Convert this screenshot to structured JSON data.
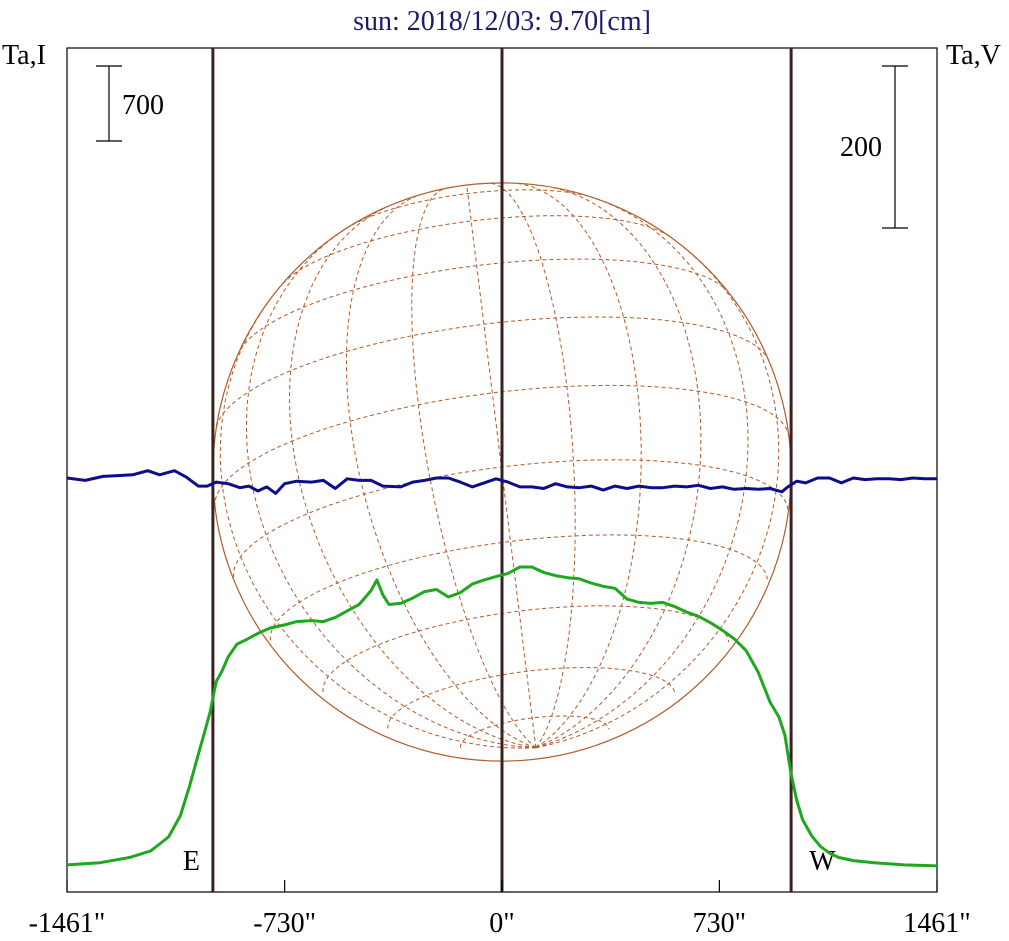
{
  "chart_data": {
    "type": "line",
    "title": "sun: 2018/12/03: 9.70[cm]",
    "title_color": "#1a1a6e",
    "y_label_left": "Ta,I",
    "y_label_right": "Ta,V",
    "x_ticks": [
      {
        "value": -1461,
        "label": "-1461\""
      },
      {
        "value": -730,
        "label": "-730\""
      },
      {
        "value": 0,
        "label": "0\""
      },
      {
        "value": 730,
        "label": "730\""
      },
      {
        "value": 1461,
        "label": "1461\""
      }
    ],
    "xlim": [
      -1461,
      1461
    ],
    "scale_bars": [
      {
        "side": "left",
        "label": "700",
        "value": 700
      },
      {
        "side": "right",
        "label": "200",
        "value": 200
      }
    ],
    "limb_markers": [
      {
        "label": "E",
        "value": -971
      },
      {
        "label": "W",
        "value": 971
      }
    ],
    "center_marker": 0,
    "solar_radius_arcsec": 971,
    "colors": {
      "stokes_i": "#1fa81f",
      "stokes_v": "#0d0d8c",
      "limb_lines": "#3b2020",
      "disk": "#b35a28"
    },
    "series": [
      {
        "name": "Ta,I",
        "axis": "left",
        "x": [
          -1461,
          -1350,
          -1250,
          -1180,
          -1120,
          -1080,
          -1050,
          -1020,
          -1000,
          -980,
          -960,
          -940,
          -920,
          -890,
          -860,
          -820,
          -780,
          -730,
          -690,
          -640,
          -600,
          -560,
          -520,
          -480,
          -440,
          -420,
          -400,
          -380,
          -340,
          -300,
          -260,
          -220,
          -180,
          -140,
          -100,
          -60,
          -20,
          20,
          60,
          100,
          140,
          180,
          220,
          260,
          300,
          340,
          380,
          420,
          460,
          500,
          540,
          580,
          620,
          660,
          700,
          740,
          780,
          820,
          860,
          900,
          930,
          950,
          970,
          990,
          1010,
          1040,
          1070,
          1100,
          1130,
          1180,
          1250,
          1350,
          1461
        ],
        "y": [
          20,
          40,
          90,
          150,
          280,
          480,
          750,
          1050,
          1250,
          1450,
          1730,
          1830,
          1960,
          2080,
          2120,
          2180,
          2230,
          2260,
          2290,
          2300,
          2290,
          2330,
          2390,
          2450,
          2580,
          2680,
          2540,
          2450,
          2460,
          2510,
          2570,
          2590,
          2520,
          2560,
          2640,
          2680,
          2710,
          2740,
          2800,
          2800,
          2750,
          2720,
          2700,
          2690,
          2650,
          2620,
          2600,
          2500,
          2470,
          2460,
          2470,
          2430,
          2380,
          2340,
          2280,
          2210,
          2130,
          2020,
          1820,
          1540,
          1400,
          1230,
          880,
          620,
          440,
          290,
          190,
          130,
          90,
          60,
          40,
          20,
          10
        ]
      },
      {
        "name": "Ta,V",
        "axis": "right",
        "x": [
          -1461,
          -1400,
          -1340,
          -1290,
          -1240,
          -1190,
          -1150,
          -1100,
          -1060,
          -1020,
          -990,
          -960,
          -920,
          -880,
          -850,
          -820,
          -790,
          -760,
          -730,
          -690,
          -640,
          -600,
          -560,
          -520,
          -480,
          -440,
          -400,
          -340,
          -300,
          -260,
          -220,
          -180,
          -140,
          -100,
          -60,
          -20,
          20,
          60,
          100,
          140,
          180,
          220,
          260,
          300,
          340,
          380,
          420,
          460,
          500,
          540,
          580,
          620,
          660,
          700,
          740,
          780,
          820,
          860,
          900,
          940,
          960,
          990,
          1020,
          1060,
          1100,
          1140,
          1180,
          1220,
          1260,
          1300,
          1340,
          1380,
          1420,
          1461
        ],
        "y": [
          0,
          -3,
          2,
          3,
          4,
          9,
          4,
          9,
          1,
          -10,
          -10,
          -5,
          -7,
          -12,
          -10,
          -16,
          -11,
          -19,
          -7,
          -4,
          -5,
          -3,
          -13,
          -1,
          -3,
          -3,
          -10,
          -11,
          -5,
          -3,
          0,
          0,
          -5,
          -11,
          -6,
          -1,
          -5,
          -11,
          -11,
          -13,
          -7,
          -11,
          -12,
          -10,
          -15,
          -10,
          -13,
          -10,
          -12,
          -12,
          -10,
          -11,
          -9,
          -13,
          -11,
          -14,
          -13,
          -14,
          -13,
          -17,
          -11,
          -4,
          -6,
          0,
          0,
          -6,
          0,
          -2,
          -1,
          -1,
          -2,
          0,
          -1,
          -1
        ]
      }
    ]
  }
}
